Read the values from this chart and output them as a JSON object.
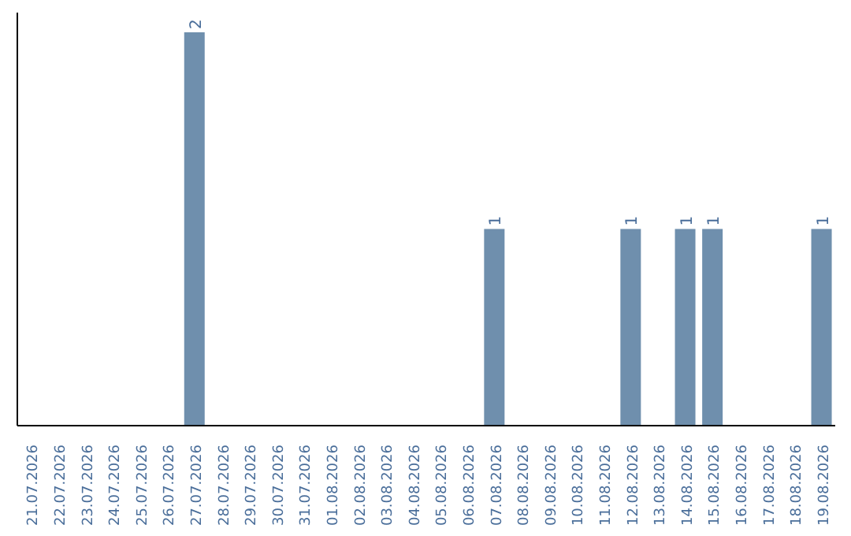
{
  "chart_data": {
    "type": "bar",
    "categories": [
      "21.07.2026",
      "22.07.2026",
      "23.07.2026",
      "24.07.2026",
      "25.07.2026",
      "26.07.2026",
      "27.07.2026",
      "28.07.2026",
      "29.07.2026",
      "30.07.2026",
      "31.07.2026",
      "01.08.2026",
      "02.08.2026",
      "03.08.2026",
      "04.08.2026",
      "05.08.2026",
      "06.08.2026",
      "07.08.2026",
      "08.08.2026",
      "09.08.2026",
      "10.08.2026",
      "11.08.2026",
      "12.08.2026",
      "13.08.2026",
      "14.08.2026",
      "15.08.2026",
      "16.08.2026",
      "17.08.2026",
      "18.08.2026",
      "19.08.2026"
    ],
    "values": [
      0,
      0,
      0,
      0,
      0,
      0,
      2,
      0,
      0,
      0,
      0,
      0,
      0,
      0,
      0,
      0,
      0,
      1,
      0,
      0,
      0,
      0,
      1,
      0,
      1,
      1,
      0,
      0,
      0,
      1
    ],
    "value_labels": [
      null,
      null,
      null,
      null,
      null,
      null,
      "2",
      null,
      null,
      null,
      null,
      null,
      null,
      null,
      null,
      null,
      null,
      "1",
      null,
      null,
      null,
      null,
      "1",
      null,
      "1",
      "1",
      null,
      null,
      null,
      "1"
    ],
    "color": "#6f8fad"
  }
}
